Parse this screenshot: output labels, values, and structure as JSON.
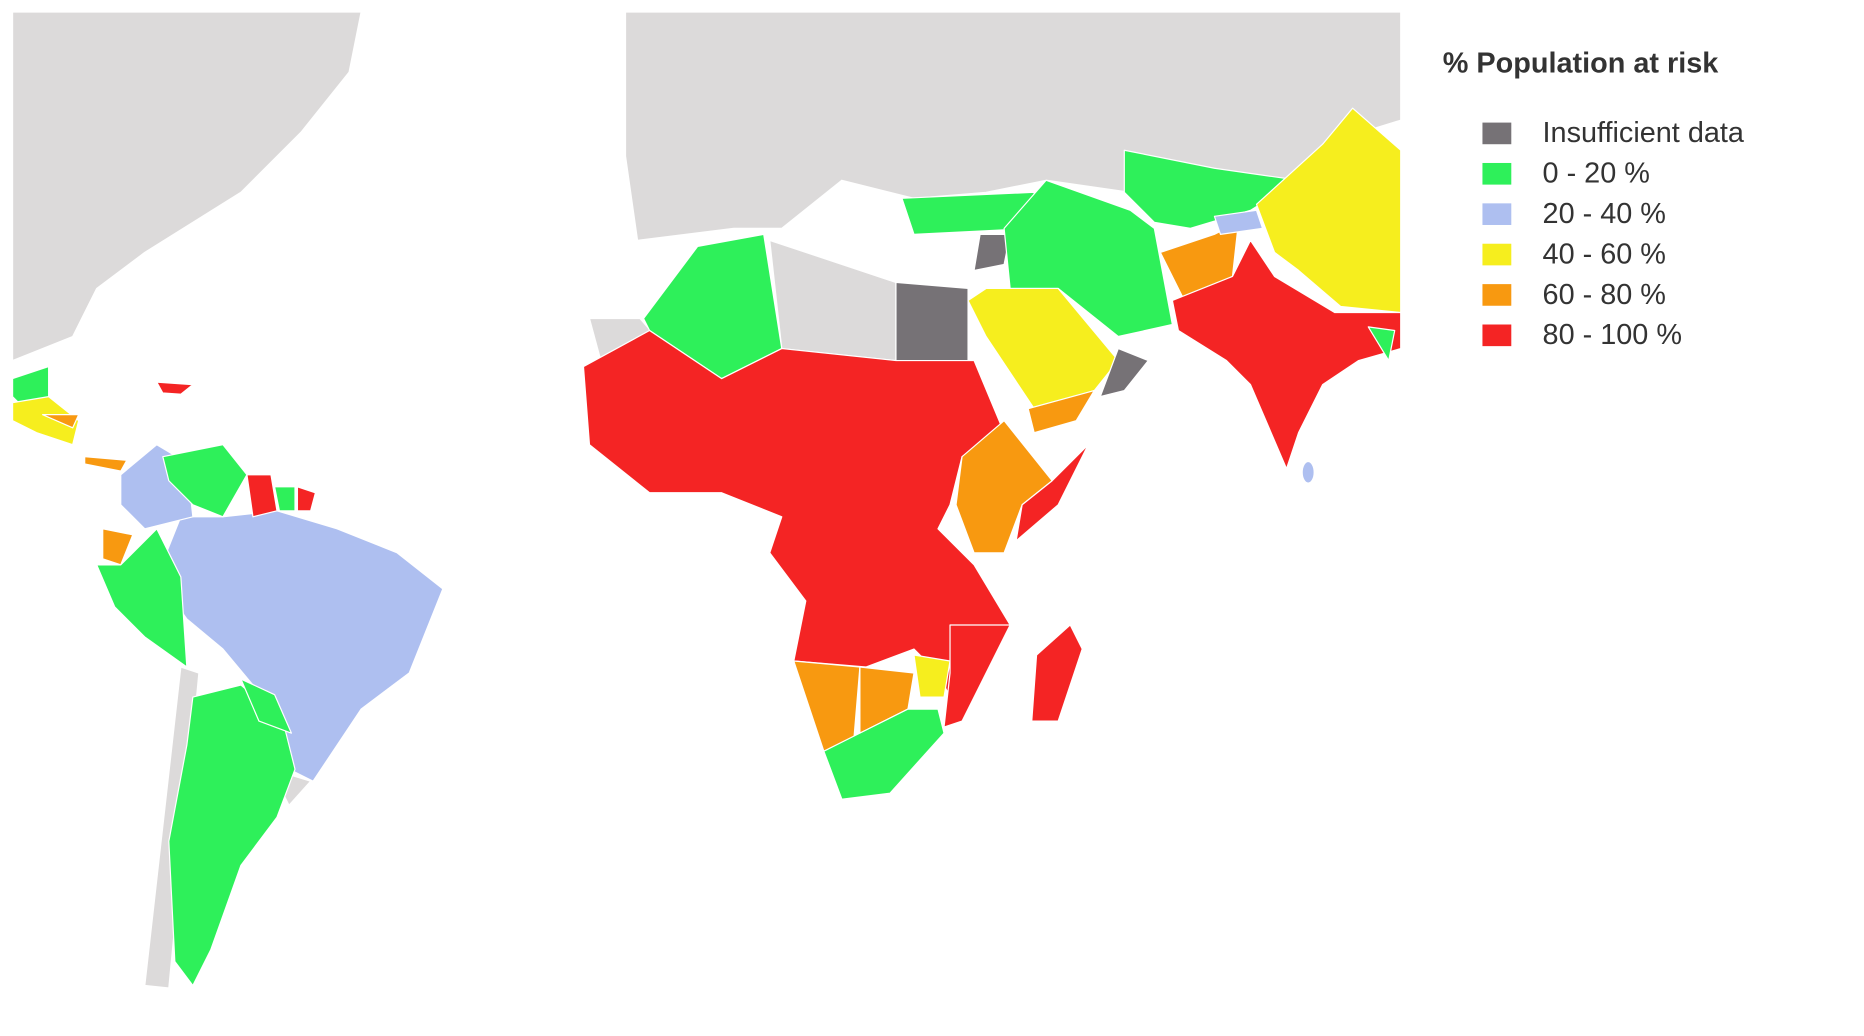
{
  "legend": {
    "title": "% Population at risk",
    "items": [
      {
        "label": "Insufficient data",
        "color": "#767276"
      },
      {
        "label": "0 - 20 %",
        "color": "#2ef05a"
      },
      {
        "label": "20 - 40 %",
        "color": "#aebff0"
      },
      {
        "label": "40 - 60 %",
        "color": "#f6ee1e"
      },
      {
        "label": "60 - 80 %",
        "color": "#f89910"
      },
      {
        "label": "80 - 100 %",
        "color": "#f42424"
      }
    ]
  },
  "land_color": "#dcdada"
}
